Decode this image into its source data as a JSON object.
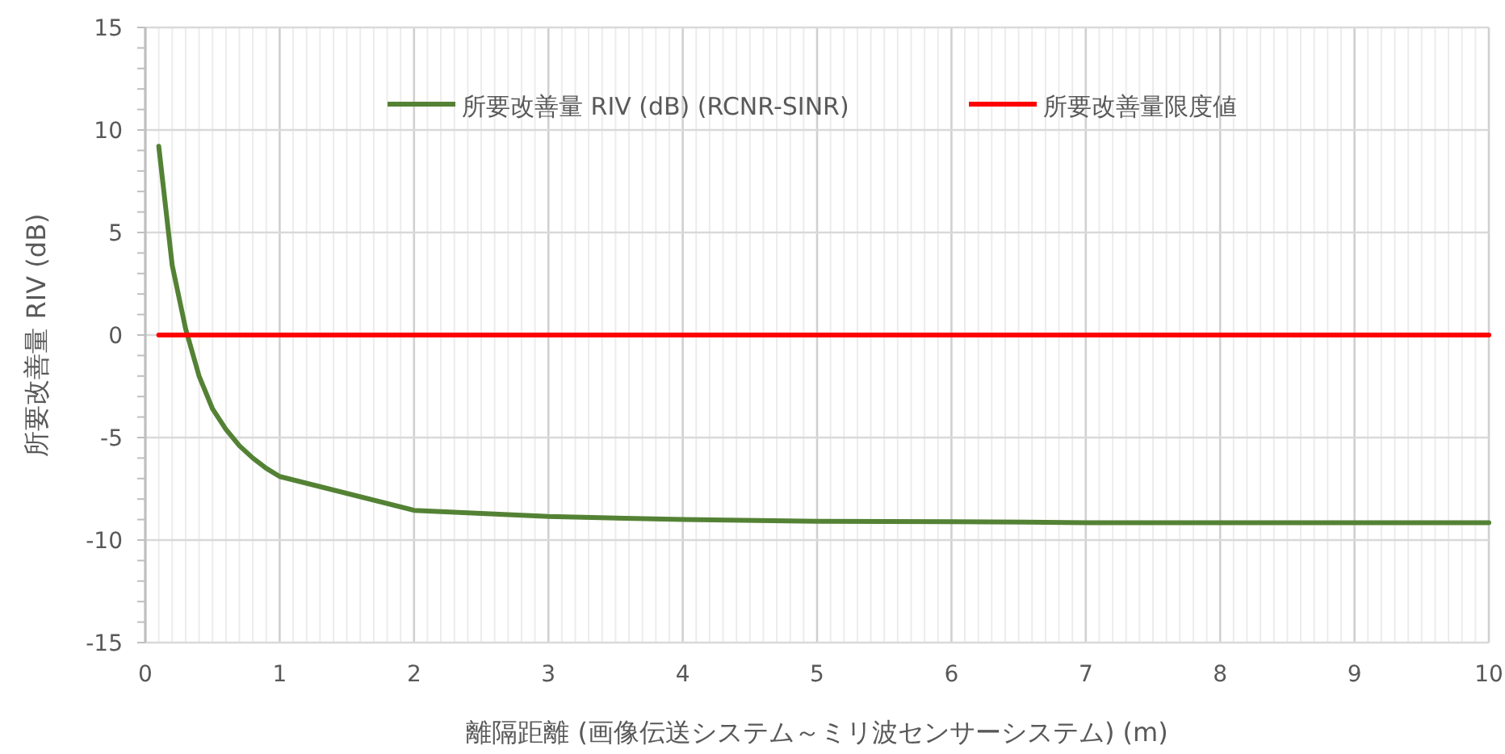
{
  "chart_data": {
    "type": "line",
    "xlabel": "離隔距離 (画像伝送システム～ミリ波センサーシステム) (m)",
    "ylabel": "所要改善量 RIV (dB)",
    "xlim": [
      0,
      10
    ],
    "xticks": [
      0,
      1,
      2,
      3,
      4,
      5,
      6,
      7,
      8,
      9,
      10
    ],
    "ylim": [
      -15,
      15
    ],
    "yticks": [
      -15,
      -10,
      -5,
      0,
      5,
      10,
      15
    ],
    "grid": true,
    "legend": "top",
    "marker": "none",
    "line_style": "solid",
    "series": [
      {
        "name": "所要改善量 RIV (dB) (RCNR-SINR)",
        "color": "#548235",
        "x": [
          0.1,
          0.2,
          0.3,
          0.4,
          0.5,
          0.6,
          0.7,
          0.8,
          0.9,
          1,
          2,
          3,
          4,
          5,
          6,
          7,
          8,
          9,
          10
        ],
        "values": [
          9.2,
          3.4,
          0.3,
          -2.0,
          -3.6,
          -4.6,
          -5.4,
          -6.0,
          -6.5,
          -6.9,
          -8.55,
          -8.85,
          -9.0,
          -9.08,
          -9.1,
          -9.15,
          -9.15,
          -9.15,
          -9.15
        ]
      },
      {
        "name": "所要改善量限度値",
        "color": "#ff0000",
        "x": [
          0.1,
          10
        ],
        "values": [
          0,
          0
        ]
      }
    ]
  }
}
